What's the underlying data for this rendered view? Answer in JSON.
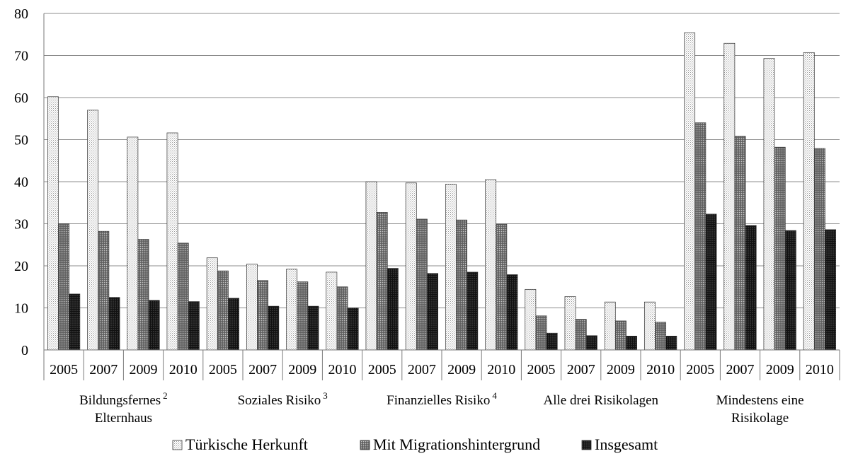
{
  "chart_data": {
    "type": "bar",
    "ylim": [
      0,
      80
    ],
    "yticks": [
      "0",
      "10",
      "20",
      "30",
      "40",
      "50",
      "60",
      "70",
      "80"
    ],
    "grid": true,
    "legend_position": "bottom",
    "groups": [
      {
        "label": "Bildungsfernes",
        "label_line2": "Elternhaus",
        "footnote": "2",
        "years": [
          "2005",
          "2007",
          "2009",
          "2010"
        ]
      },
      {
        "label": "Soziales Risiko",
        "label_line2": "",
        "footnote": "3",
        "years": [
          "2005",
          "2007",
          "2009",
          "2010"
        ]
      },
      {
        "label": "Finanzielles Risiko",
        "label_line2": "",
        "footnote": "4",
        "years": [
          "2005",
          "2007",
          "2009",
          "2010"
        ]
      },
      {
        "label": "Alle drei Risikolagen",
        "label_line2": "",
        "footnote": "",
        "years": [
          "2005",
          "2007",
          "2009",
          "2010"
        ]
      },
      {
        "label": "Mindestens eine",
        "label_line2": "Risikolage",
        "footnote": "",
        "years": [
          "2005",
          "2007",
          "2009",
          "2010"
        ]
      }
    ],
    "series": [
      {
        "name": "Türkische Herkunft",
        "pattern": "light-dotted",
        "values": [
          60.2,
          57.0,
          50.6,
          51.6,
          21.9,
          20.4,
          19.2,
          18.5,
          40.0,
          39.7,
          39.4,
          40.5,
          14.4,
          12.7,
          11.4,
          11.4,
          75.4,
          72.9,
          69.3,
          70.7
        ]
      },
      {
        "name": "Mit Migrationshintergrund",
        "pattern": "medium-crosshatch",
        "values": [
          30.0,
          28.2,
          26.3,
          25.4,
          18.8,
          16.5,
          16.2,
          15.0,
          32.7,
          31.1,
          30.9,
          29.9,
          8.1,
          7.3,
          6.9,
          6.6,
          54.0,
          50.8,
          48.2,
          47.9
        ]
      },
      {
        "name": "Insgesamt",
        "pattern": "dark-dotted",
        "values": [
          13.3,
          12.5,
          11.8,
          11.5,
          12.3,
          10.4,
          10.4,
          10.0,
          19.4,
          18.2,
          18.5,
          17.9,
          4.0,
          3.4,
          3.3,
          3.3,
          32.3,
          29.6,
          28.4,
          28.6
        ]
      }
    ]
  }
}
